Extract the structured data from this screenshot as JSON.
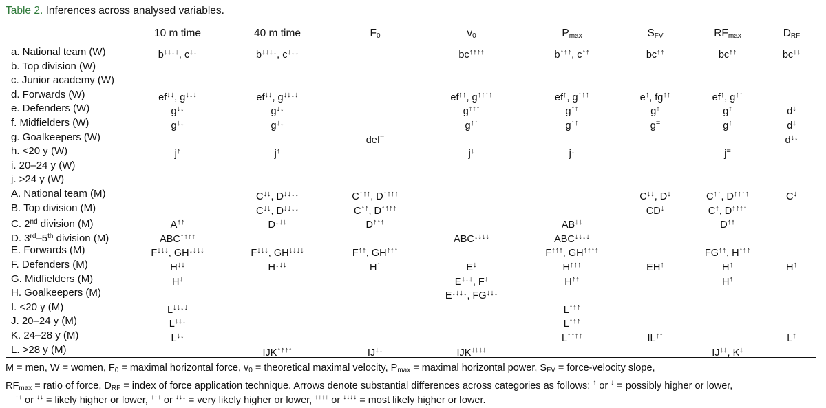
{
  "caption": {
    "label": "Table 2.",
    "text": " Inferences across analysed variables."
  },
  "columns": [
    {
      "id": "t10",
      "main": "10 m time",
      "sub": ""
    },
    {
      "id": "t40",
      "main": "40 m time",
      "sub": ""
    },
    {
      "id": "f0",
      "main": "F",
      "sub": "0"
    },
    {
      "id": "v0",
      "main": "v",
      "sub": "0"
    },
    {
      "id": "pmax",
      "main": "P",
      "sub": "max"
    },
    {
      "id": "sfv",
      "main": "S",
      "sub": "FV"
    },
    {
      "id": "rfmax",
      "main": "RF",
      "sub": "max"
    },
    {
      "id": "drf",
      "main": "D",
      "sub": "RF"
    }
  ],
  "rows": [
    {
      "label": "a. National team (W)",
      "cells": {
        "t10": "b↓↓↓↓, c↓↓",
        "t40": "b↓↓↓↓, c↓↓↓",
        "v0": "bc↑↑↑↑",
        "pmax": "b↑↑↑, c↑↑",
        "sfv": "bc↑↑",
        "rfmax": "bc↑↑",
        "drf": "bc↓↓"
      }
    },
    {
      "label": "b. Top division (W)",
      "cells": {}
    },
    {
      "label": "c. Junior academy (W)",
      "cells": {}
    },
    {
      "label": "d. Forwards (W)",
      "cells": {
        "t10": "ef↓↓, g↓↓↓",
        "t40": "ef↓↓, g↓↓↓↓",
        "v0": "ef↑↑, g↑↑↑↑",
        "pmax": "ef↑, g↑↑↑",
        "sfv": "e↑, fg↑↑",
        "rfmax": "ef↑, g↑↑"
      }
    },
    {
      "label": "e. Defenders (W)",
      "cells": {
        "t10": "g↓↓",
        "t40": "g↓↓",
        "v0": "g↑↑↑",
        "pmax": "g↑↑",
        "sfv": "g↑",
        "rfmax": "g↑",
        "drf": "d↓"
      }
    },
    {
      "label": "f. Midfielders (W)",
      "cells": {
        "t10": "g↓↓",
        "t40": "g↓↓",
        "v0": "g↑↑",
        "pmax": "g↑↑",
        "sfv": "g=",
        "rfmax": "g↑",
        "drf": "d↓"
      }
    },
    {
      "label": "g. Goalkeepers (W)",
      "cells": {
        "f0": "def=",
        "drf": "d↓↓"
      }
    },
    {
      "label": "h. <20 y (W)",
      "cells": {
        "t10": "j↑",
        "t40": "j↑",
        "v0": "j↓",
        "pmax": "j↓",
        "rfmax": "j="
      }
    },
    {
      "label": "i. 20–24 y (W)",
      "cells": {}
    },
    {
      "label": "j. >24 y (W)",
      "cells": {}
    },
    {
      "label": "A. National team (M)",
      "cells": {
        "t40": "C↓↓, D↓↓↓↓",
        "f0": "C↑↑↑, D↑↑↑↑",
        "sfv": "C↓↓, D↓",
        "rfmax": "C↑↑, D↑↑↑↑",
        "drf": "C↓"
      }
    },
    {
      "label": "B. Top division (M)",
      "cells": {
        "t40": "C↓↓, D↓↓↓↓",
        "f0": "C↑↑, D↑↑↑↑",
        "sfv": "CD↓",
        "rfmax": "C↑, D↑↑↑↑"
      }
    },
    {
      "label": "C. 2nd division (M)",
      "labelMain": "C. 2",
      "labelSup": "nd",
      "labelRest": " division (M)",
      "cells": {
        "t10": "A↑↑",
        "t40": "D↓↓↓",
        "f0": "D↑↑↑",
        "pmax": "AB↓↓",
        "rfmax": "D↑↑"
      }
    },
    {
      "label": "D. 3rd–5th division (M)",
      "labelMain": "D. 3",
      "labelSup": "rd",
      "labelMid": "–5",
      "labelSup2": "th",
      "labelRest": " division (M)",
      "cells": {
        "t10": "ABC↑↑↑↑",
        "v0": "ABC↓↓↓↓",
        "pmax": "ABC↓↓↓↓"
      }
    },
    {
      "label": "E. Forwards (M)",
      "cells": {
        "t10": "F↓↓↓, GH↓↓↓↓",
        "t40": "F↓↓↓, GH↓↓↓↓",
        "f0": "F↑↑, GH↑↑↑",
        "pmax": "F↑↑↑, GH↑↑↑↑",
        "rfmax": "FG↑↑, H↑↑↑"
      }
    },
    {
      "label": "F. Defenders (M)",
      "cells": {
        "t10": "H↓↓",
        "t40": "H↓↓↓",
        "f0": "H↑",
        "v0": "E↓",
        "pmax": "H↑↑↑",
        "sfv": "EH↑",
        "rfmax": "H↑",
        "drf": "H↑"
      }
    },
    {
      "label": "G. Midfielders (M)",
      "cells": {
        "t10": "H↓",
        "v0": "E↓↓↓, F↓",
        "pmax": "H↑↑",
        "rfmax": "H↑"
      }
    },
    {
      "label": "H. Goalkeepers (M)",
      "cells": {
        "v0": "E↓↓↓↓, FG↓↓↓"
      }
    },
    {
      "label": "I. <20 y (M)",
      "cells": {
        "t10": "L↓↓↓↓",
        "pmax": "L↑↑↑"
      }
    },
    {
      "label": "J. 20–24 y (M)",
      "cells": {
        "t10": "L↓↓↓",
        "pmax": "L↑↑↑"
      }
    },
    {
      "label": "K. 24–28 y (M)",
      "cells": {
        "t10": "L↓↓",
        "pmax": "L↑↑↑↑",
        "sfv": "IL↑↑",
        "drf": "L↑"
      }
    },
    {
      "label": "L. >28 y (M)",
      "cells": {
        "t40": "IJK↑↑↑↑",
        "f0": "IJ↓↓",
        "v0": "IJK↓↓↓↓",
        "rfmax": "IJ↓↓, K↓"
      }
    }
  ],
  "notes": {
    "line1_a": "M = men, W = women, F",
    "line1_b": "0",
    "line1_c": " = maximal horizontal force, v",
    "line1_d": "0",
    "line1_e": " = theoretical maximal velocity, P",
    "line1_f": "max",
    "line1_g": " = maximal horizontal power, S",
    "line1_h": "FV",
    "line1_i": " = force-velocity slope,",
    "line2_a": "RF",
    "line2_b": "max",
    "line2_c": " = ratio of force, D",
    "line2_d": "RF",
    "line2_e": " = index of force application technique. Arrows denote substantial differences across categories as follows: ",
    "line2_f": "↑",
    "line2_g": " or ",
    "line2_h": "↓",
    "line2_i": " = possibly higher or lower,",
    "line3_a": "↑↑",
    "line3_b": " or ",
    "line3_c": "↓↓",
    "line3_d": " = likely higher or lower, ",
    "line3_e": "↑↑↑",
    "line3_f": " or ",
    "line3_g": "↓↓↓",
    "line3_h": " = very likely higher or lower, ",
    "line3_i": "↑↑↑↑",
    "line3_j": " or ",
    "line3_k": "↓↓↓↓",
    "line3_l": " = most likely higher or lower."
  }
}
